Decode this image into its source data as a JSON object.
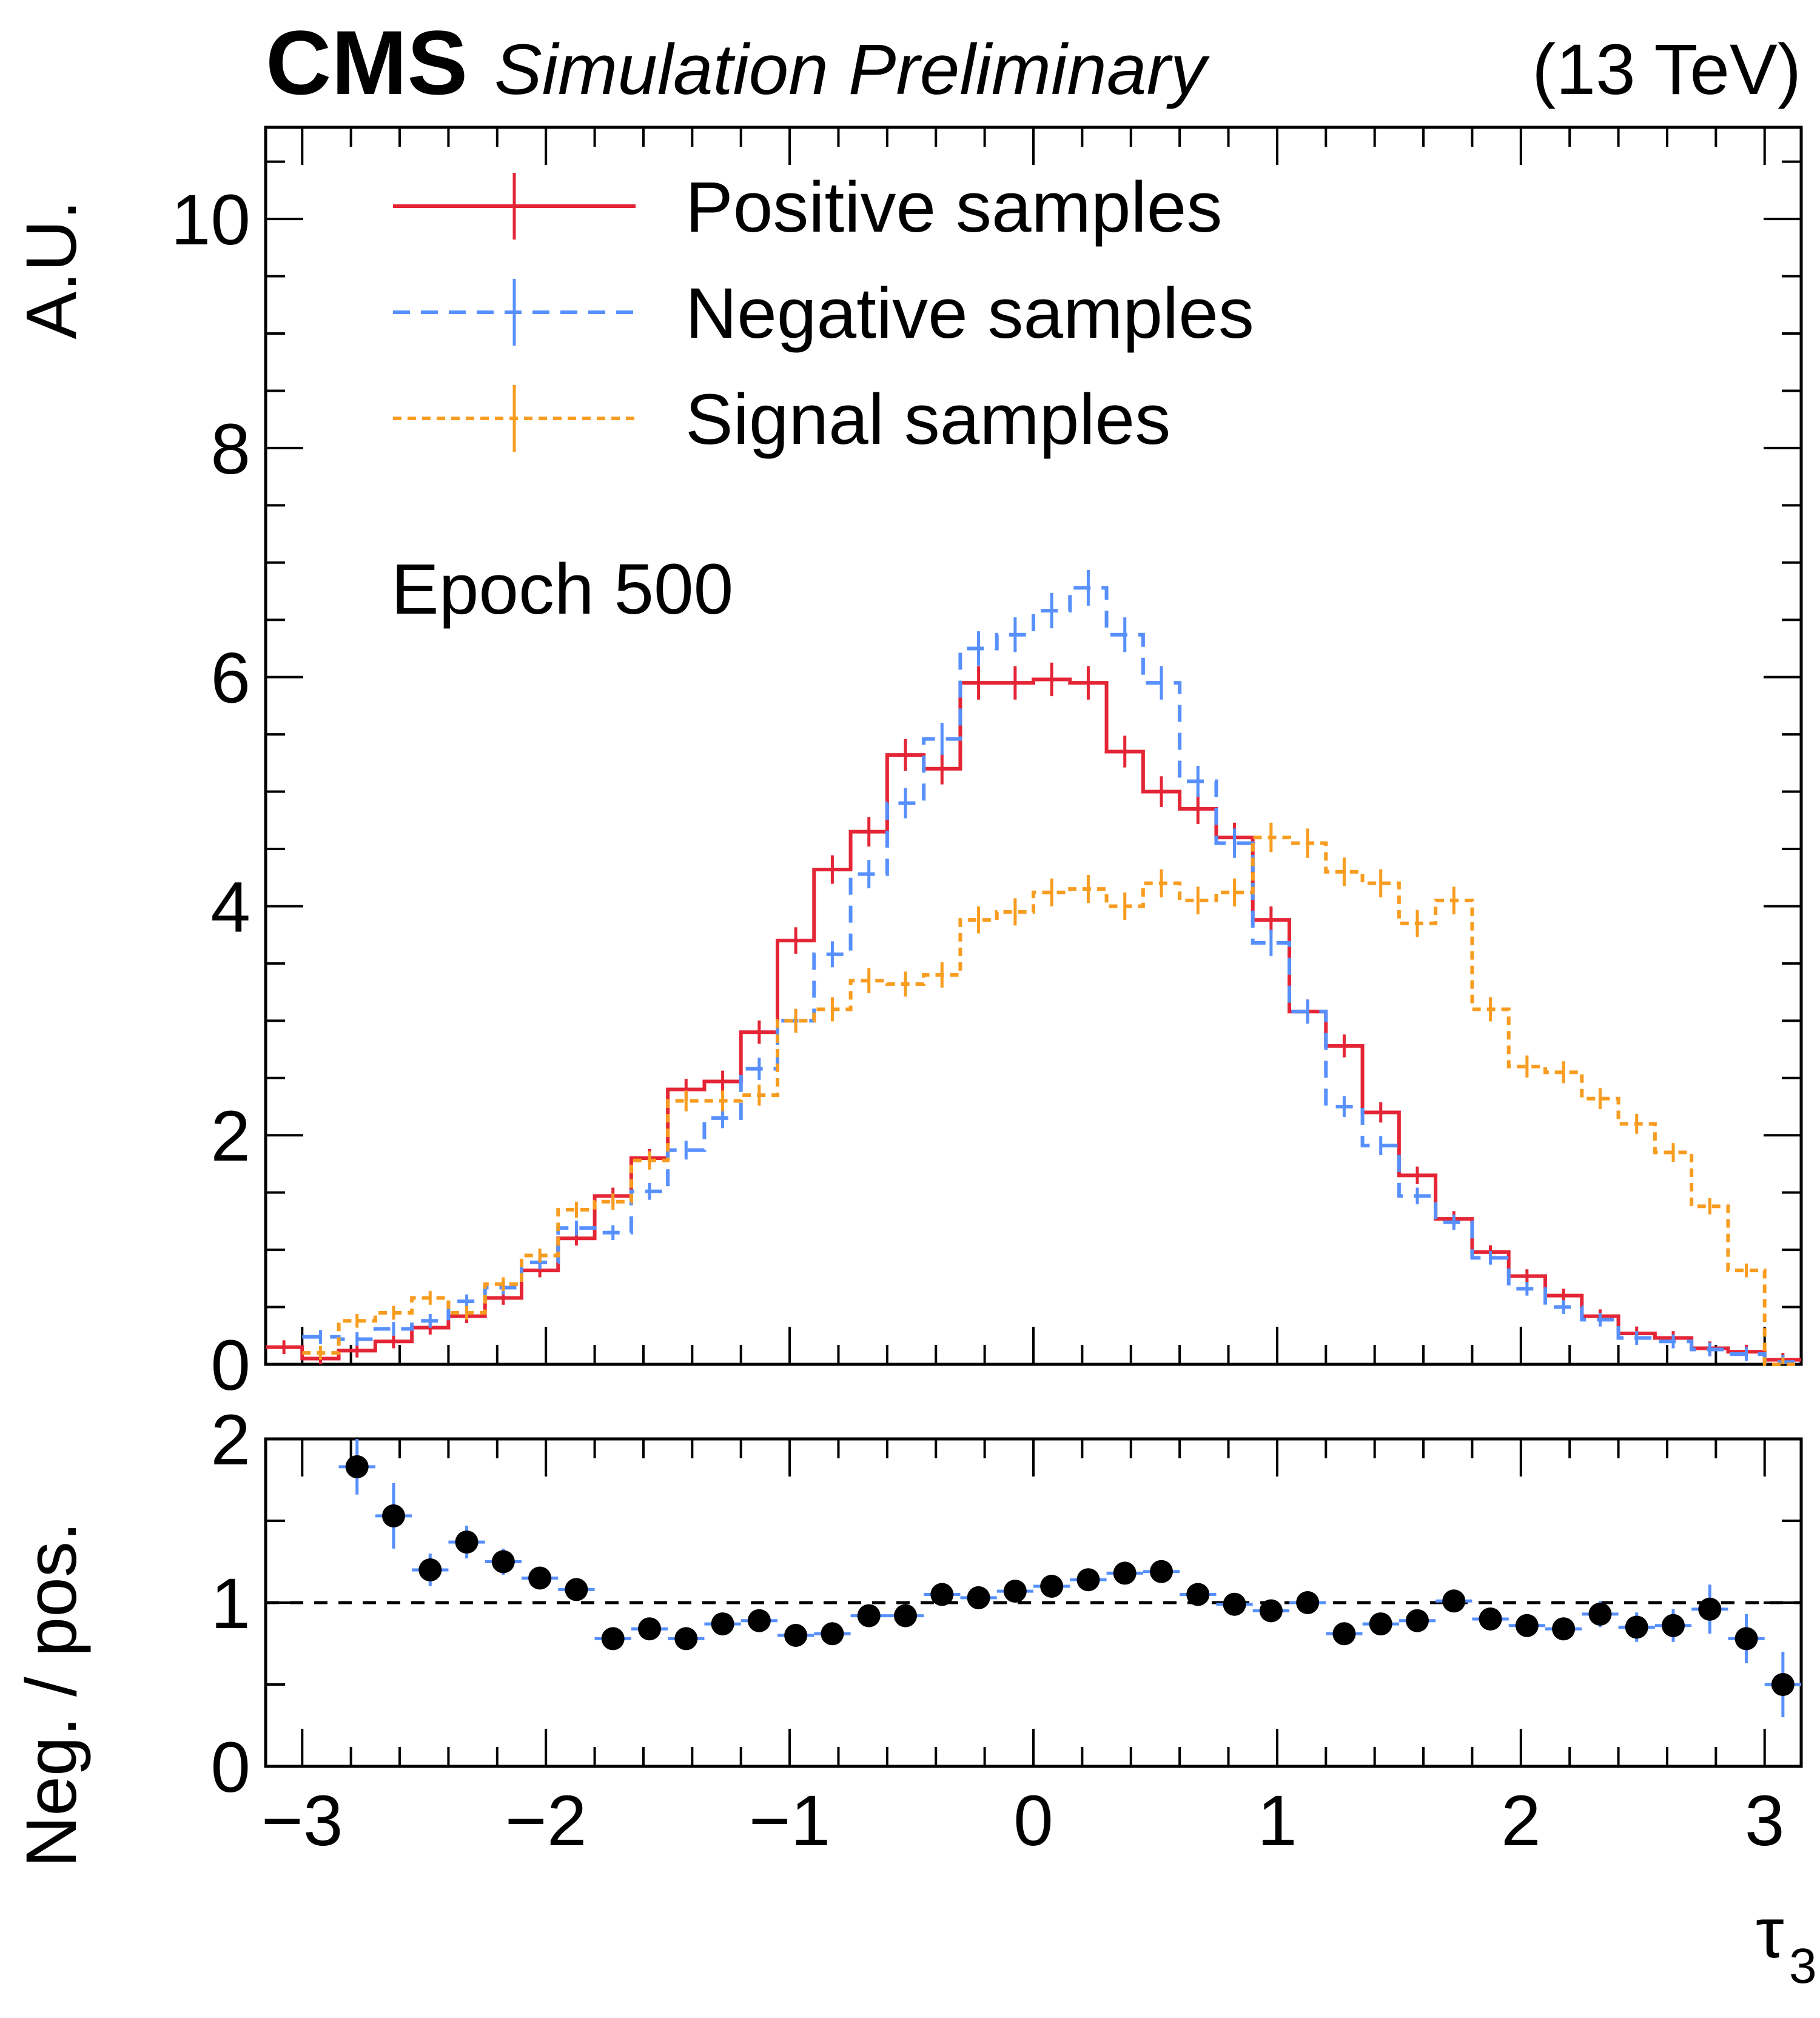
{
  "header": {
    "experiment": "CMS",
    "status": "Simulation Preliminary",
    "energy": "(13 TeV)"
  },
  "annotation": "Epoch 500",
  "chart_data": [
    {
      "type": "histogram-step",
      "title": "",
      "ylabel": "A.U.",
      "xlabel": "τ3",
      "xlim": [
        -3.15,
        3.15
      ],
      "ylim": [
        0,
        10.8
      ],
      "yticks": [
        0,
        2,
        4,
        6,
        8,
        10
      ],
      "bin_edges_start": -3.15,
      "bin_width": 0.15,
      "legend_position": "top-left",
      "series": [
        {
          "name": "Positive samples",
          "color": "#e42536",
          "style": "solid",
          "values": [
            0.15,
            0.05,
            0.12,
            0.2,
            0.32,
            0.42,
            0.58,
            0.82,
            1.1,
            1.47,
            1.8,
            2.4,
            2.47,
            2.9,
            3.7,
            4.32,
            4.65,
            5.32,
            5.2,
            5.95,
            5.95,
            5.98,
            5.95,
            5.35,
            5.0,
            4.85,
            4.6,
            3.88,
            3.08,
            2.78,
            2.2,
            1.65,
            1.27,
            0.98,
            0.77,
            0.6,
            0.42,
            0.27,
            0.23,
            0.14,
            0.11,
            0.04
          ]
        },
        {
          "name": "Negative samples",
          "color": "#5790fc",
          "style": "dashed",
          "values": [
            null,
            0.24,
            0.22,
            0.31,
            0.38,
            0.55,
            0.67,
            0.89,
            1.19,
            1.15,
            1.51,
            1.87,
            2.15,
            2.58,
            3.0,
            3.58,
            4.28,
            4.9,
            5.46,
            6.25,
            6.37,
            6.58,
            6.78,
            6.37,
            5.95,
            5.09,
            4.55,
            3.68,
            3.08,
            2.25,
            1.91,
            1.47,
            1.24,
            0.93,
            0.66,
            0.5,
            0.39,
            0.23,
            0.2,
            0.13,
            0.09,
            0.02
          ]
        },
        {
          "name": "Signal samples",
          "color": "#f89c20",
          "style": "dotted",
          "values": [
            null,
            0.1,
            0.38,
            0.45,
            0.58,
            0.45,
            0.7,
            0.95,
            1.35,
            1.42,
            1.78,
            2.3,
            2.3,
            2.35,
            3.0,
            3.1,
            3.35,
            3.32,
            3.4,
            3.88,
            3.95,
            4.12,
            4.15,
            4.0,
            4.2,
            4.05,
            4.12,
            4.6,
            4.55,
            4.3,
            4.2,
            3.85,
            4.05,
            3.1,
            2.6,
            2.55,
            2.32,
            2.1,
            1.85,
            1.38,
            0.82,
            0.0
          ]
        }
      ]
    },
    {
      "type": "scatter",
      "ylabel": "Neg. / pos.",
      "xlabel": "τ3",
      "xlim": [
        -3.15,
        3.15
      ],
      "ylim": [
        0,
        2
      ],
      "yticks": [
        0,
        1,
        2
      ],
      "xticks": [
        -3,
        -2,
        -1,
        0,
        1,
        2,
        3
      ],
      "xtick_labels": [
        "−3",
        "−2",
        "−1",
        "0",
        "1",
        "2",
        "3"
      ],
      "reference_line": 1,
      "series": [
        {
          "name": "Neg. / pos.",
          "marker_color": "#000000",
          "error_color": "#5790fc",
          "x": [
            -2.775,
            -2.625,
            -2.475,
            -2.325,
            -2.175,
            -2.025,
            -1.875,
            -1.725,
            -1.575,
            -1.425,
            -1.275,
            -1.125,
            -0.975,
            -0.825,
            -0.675,
            -0.525,
            -0.375,
            -0.225,
            -0.075,
            0.075,
            0.225,
            0.375,
            0.525,
            0.675,
            0.825,
            0.975,
            1.125,
            1.275,
            1.425,
            1.575,
            1.725,
            1.875,
            2.025,
            2.175,
            2.325,
            2.475,
            2.625,
            2.775,
            2.925,
            3.075
          ],
          "y": [
            1.83,
            1.53,
            1.2,
            1.37,
            1.25,
            1.15,
            1.08,
            0.78,
            0.84,
            0.78,
            0.87,
            0.89,
            0.8,
            0.81,
            0.92,
            0.92,
            1.05,
            1.03,
            1.07,
            1.1,
            1.14,
            1.18,
            1.19,
            1.05,
            0.99,
            0.95,
            1.0,
            0.81,
            0.87,
            0.89,
            1.01,
            0.9,
            0.86,
            0.84,
            0.93,
            0.85,
            0.86,
            0.96,
            0.78,
            0.5
          ],
          "yerr": [
            0.17,
            0.2,
            0.1,
            0.1,
            0.08,
            0.06,
            0.05,
            0.04,
            0.04,
            0.03,
            0.03,
            0.03,
            0.03,
            0.03,
            0.03,
            0.03,
            0.03,
            0.03,
            0.03,
            0.03,
            0.03,
            0.03,
            0.03,
            0.03,
            0.03,
            0.04,
            0.04,
            0.04,
            0.04,
            0.05,
            0.05,
            0.05,
            0.06,
            0.07,
            0.08,
            0.09,
            0.1,
            0.15,
            0.15,
            0.2
          ]
        }
      ]
    }
  ]
}
